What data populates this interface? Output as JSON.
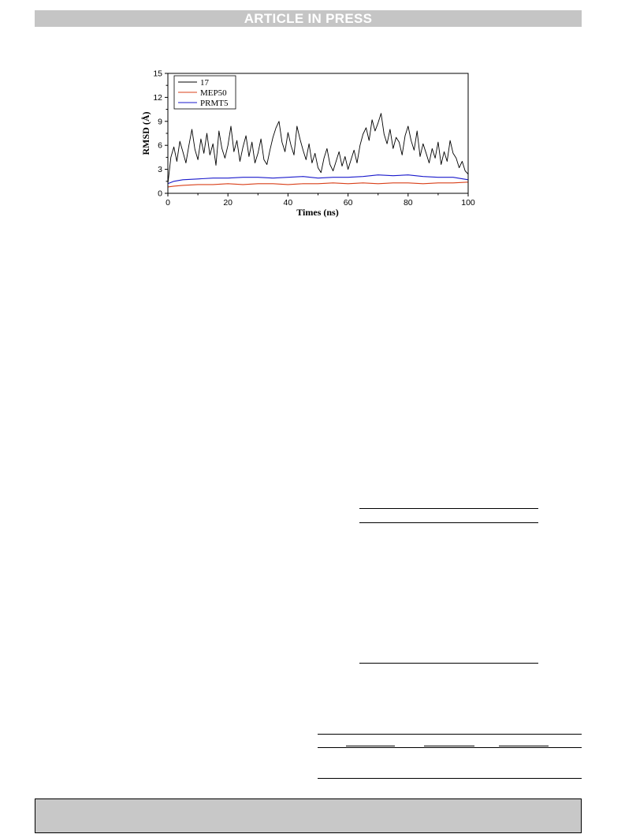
{
  "header": {
    "banner": "ARTICLE IN PRESS"
  },
  "colors": {
    "series_17": "#000000",
    "series_MEP50": "#d9401a",
    "series_PRMT5": "#1a1acc",
    "banner_bg": "#c5c5c5",
    "footer_bg": "#c8c8c8"
  },
  "chart_data": {
    "type": "line",
    "title": "",
    "xlabel": "Times (ns)",
    "ylabel": "RMSD (Å)",
    "xlim": [
      0,
      100
    ],
    "ylim": [
      0,
      15
    ],
    "xticks": [
      0,
      20,
      40,
      60,
      80,
      100
    ],
    "yticks": [
      0,
      3,
      6,
      9,
      12,
      15
    ],
    "grid": false,
    "legend_position": "top-left",
    "series": [
      {
        "name": "17",
        "color": "#000000",
        "x": [
          0,
          1,
          2,
          3,
          4,
          5,
          6,
          7,
          8,
          9,
          10,
          11,
          12,
          13,
          14,
          15,
          16,
          17,
          18,
          19,
          20,
          21,
          22,
          23,
          24,
          25,
          26,
          27,
          28,
          29,
          30,
          31,
          32,
          33,
          34,
          35,
          36,
          37,
          38,
          39,
          40,
          41,
          42,
          43,
          44,
          45,
          46,
          47,
          48,
          49,
          50,
          51,
          52,
          53,
          54,
          55,
          56,
          57,
          58,
          59,
          60,
          61,
          62,
          63,
          64,
          65,
          66,
          67,
          68,
          69,
          70,
          71,
          72,
          73,
          74,
          75,
          76,
          77,
          78,
          79,
          80,
          81,
          82,
          83,
          84,
          85,
          86,
          87,
          88,
          89,
          90,
          91,
          92,
          93,
          94,
          95,
          96,
          97,
          98,
          99,
          100
        ],
        "values": [
          1.2,
          4.5,
          5.8,
          4.0,
          6.5,
          5.2,
          3.8,
          6.0,
          8.0,
          5.5,
          4.2,
          6.8,
          5.0,
          7.5,
          4.8,
          6.2,
          3.5,
          7.8,
          5.6,
          4.4,
          6.0,
          8.4,
          5.2,
          6.6,
          4.0,
          5.8,
          7.2,
          4.6,
          6.4,
          3.8,
          5.0,
          6.8,
          4.2,
          3.6,
          5.4,
          7.0,
          8.2,
          9.0,
          6.4,
          5.2,
          7.6,
          6.0,
          4.8,
          8.4,
          6.8,
          5.4,
          4.2,
          6.2,
          3.8,
          5.0,
          3.2,
          2.6,
          4.4,
          5.6,
          3.6,
          2.8,
          4.0,
          5.2,
          3.4,
          4.6,
          3.0,
          4.2,
          5.4,
          3.8,
          6.0,
          7.4,
          8.2,
          6.6,
          9.2,
          7.8,
          8.8,
          10.0,
          7.4,
          6.2,
          8.0,
          5.6,
          7.0,
          6.4,
          4.8,
          7.2,
          8.4,
          6.6,
          5.4,
          7.8,
          4.6,
          6.2,
          5.0,
          3.8,
          5.6,
          4.4,
          6.4,
          3.6,
          5.2,
          4.0,
          6.6,
          5.0,
          4.4,
          3.2,
          4.0,
          2.8,
          2.4
        ]
      },
      {
        "name": "MEP50",
        "color": "#d9401a",
        "x": [
          0,
          2,
          5,
          10,
          15,
          20,
          25,
          30,
          35,
          40,
          45,
          50,
          55,
          60,
          65,
          70,
          75,
          80,
          85,
          90,
          95,
          100
        ],
        "values": [
          0.8,
          0.9,
          1.0,
          1.1,
          1.1,
          1.2,
          1.1,
          1.2,
          1.2,
          1.1,
          1.2,
          1.2,
          1.3,
          1.2,
          1.3,
          1.2,
          1.3,
          1.3,
          1.2,
          1.3,
          1.3,
          1.4
        ]
      },
      {
        "name": "PRMT5",
        "color": "#1a1acc",
        "x": [
          0,
          2,
          5,
          10,
          15,
          20,
          25,
          30,
          35,
          40,
          45,
          50,
          55,
          60,
          65,
          70,
          75,
          80,
          85,
          90,
          95,
          100
        ],
        "values": [
          1.2,
          1.5,
          1.7,
          1.8,
          1.9,
          1.9,
          2.0,
          2.0,
          1.9,
          2.0,
          2.1,
          1.9,
          2.0,
          2.0,
          2.1,
          2.3,
          2.2,
          2.3,
          2.1,
          2.0,
          2.0,
          1.7
        ]
      }
    ]
  }
}
